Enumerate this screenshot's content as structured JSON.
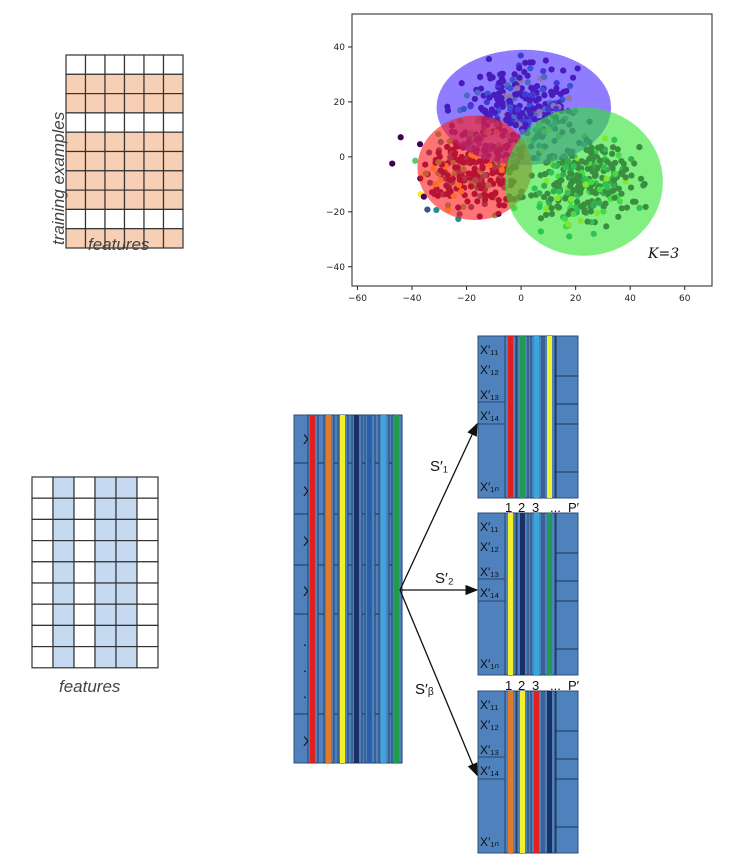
{
  "row_sampling": {
    "ylabel": "training examples",
    "xlabel": "features",
    "rows": 10,
    "cols": 6,
    "highlighted_rows": [
      1,
      2,
      4,
      5,
      6,
      7,
      9
    ],
    "highlight_color": "#f7cfb4"
  },
  "column_sampling": {
    "xlabel": "features",
    "rows": 9,
    "cols": 6,
    "highlighted_cols": [
      1,
      3,
      4
    ],
    "highlight_color": "#c5daf0"
  },
  "chart_data": {
    "type": "scatter",
    "annotation": "K=3",
    "xlim": [
      -62,
      70
    ],
    "ylim": [
      -47,
      52
    ],
    "xticks": [
      "−60",
      "−40",
      "−20",
      "0",
      "20",
      "40",
      "60"
    ],
    "yticks": [
      "−40",
      "−20",
      "0",
      "20",
      "40"
    ],
    "clusters": [
      {
        "color": "#4a2cff",
        "center": [
          1,
          18
        ],
        "radius_x": 32,
        "radius_y": 21
      },
      {
        "color": "#ff1e1e",
        "center": [
          -17,
          -4
        ],
        "radius_x": 21,
        "radius_y": 19
      },
      {
        "color": "#33e533",
        "center": [
          23,
          -9
        ],
        "radius_x": 29,
        "radius_y": 27
      }
    ],
    "point_colors": [
      "#440154",
      "#21918c",
      "#fde725",
      "#3b528b",
      "#5ec962"
    ]
  },
  "bootstrap": {
    "source_rows": [
      "X₁",
      "X₂",
      "X₃",
      "X₄",
      ".",
      ".",
      ".",
      "Xₙ"
    ],
    "stripe_colors": [
      "#e01f1f",
      "#e07a2a",
      "#f3ef2a",
      "#1a2f66",
      "#2a5fa8",
      "#3aa6e0",
      "#1f9a50"
    ],
    "sample_labels": [
      "S′₁",
      "S′₂",
      "S′ᵦ"
    ],
    "sample_rows": [
      "X′₁₁",
      "X′₁₂",
      "X′₁₃",
      "X′₁₄",
      "X′₁ₙ"
    ],
    "column_header": [
      "1",
      "2",
      "3",
      "...",
      "P′"
    ],
    "samples": [
      {
        "stripes": [
          "#e01f1f",
          "#1f9a50",
          "#3aa6e0",
          "#f3ef2a"
        ]
      },
      {
        "stripes": [
          "#f3ef2a",
          "#1a2f66",
          "#3aa6e0",
          "#1f9a50"
        ]
      },
      {
        "stripes": [
          "#e07a2a",
          "#f3ef2a",
          "#e01f1f",
          "#1a2f66"
        ]
      }
    ],
    "cell_color": "#4f81bd"
  }
}
